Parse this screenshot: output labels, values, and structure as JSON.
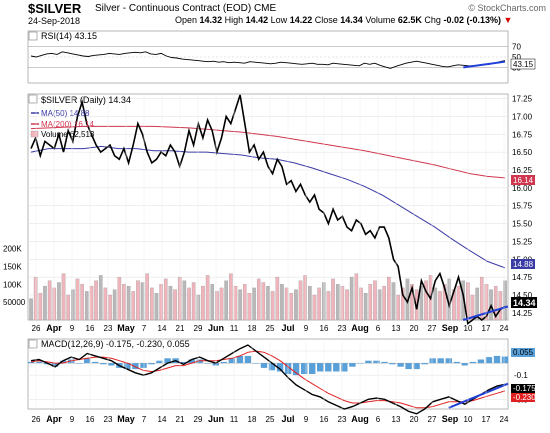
{
  "header": {
    "symbol": "$SILVER",
    "description": "Silver - Continuous Contract (EOD)",
    "exchange": "CME",
    "date": "24-Sep-2018",
    "open_label": "Open",
    "open": "14.32",
    "high_label": "High",
    "high": "14.42",
    "low_label": "Low",
    "low": "14.22",
    "close_label": "Close",
    "close": "14.34",
    "volume_label": "Volume",
    "volume": "62.5K",
    "chg_label": "Chg",
    "chg": "-0.02 (-0.13%)",
    "chg_arrow": "▼",
    "brand": "© StockCharts.com"
  },
  "colors": {
    "price": "#000000",
    "ma50": "#3b3ba6",
    "ma200": "#d0364e",
    "volume_up": "#b8b8b8",
    "volume_down": "#f0b4bc",
    "macd": "#000000",
    "signal": "#e02020",
    "histogram": "#5aa0d8",
    "trendline": "#1f3fd6"
  },
  "chart_data": [
    {
      "type": "line",
      "title": "RSI(14) 43.15",
      "series": [
        {
          "name": "RSI(14)",
          "values": [
            52,
            50,
            53,
            56,
            57,
            55,
            60,
            58,
            56,
            54,
            52,
            51,
            53,
            54,
            55,
            57,
            56,
            55,
            57,
            58,
            59,
            58,
            60,
            56,
            55,
            57,
            52,
            49,
            48,
            46,
            45,
            44,
            43,
            42,
            41,
            42,
            40,
            41,
            39,
            40,
            39,
            38,
            41,
            40,
            39,
            38,
            37,
            38,
            40,
            39,
            38,
            37,
            36,
            37,
            38,
            36,
            36,
            35,
            38,
            37,
            36,
            35,
            34,
            33,
            38,
            36,
            38,
            34,
            31,
            28,
            32,
            35,
            38,
            40,
            42,
            40,
            38,
            36,
            34,
            32,
            31,
            33,
            35,
            34,
            33,
            33,
            34,
            35,
            36,
            38,
            41,
            43
          ]
        }
      ],
      "ylim": [
        0,
        100
      ],
      "yticks": [
        30,
        50,
        70
      ],
      "last_value": "43.15"
    },
    {
      "type": "line",
      "title": "$SILVER (Daily) 14.34",
      "x_labels": [
        "26",
        "Apr",
        "9",
        "16",
        "23",
        "May",
        "7",
        "14",
        "21",
        "29",
        "Jun",
        "11",
        "18",
        "25",
        "Jul",
        "9",
        "16",
        "23",
        "Aug",
        "6",
        "13",
        "20",
        "27",
        "Sep",
        "10",
        "17",
        "24"
      ],
      "series": [
        {
          "name": "$SILVER (Daily) 14.34",
          "values": [
            16.55,
            16.7,
            16.45,
            16.65,
            16.6,
            16.55,
            16.75,
            16.5,
            16.8,
            16.65,
            17.0,
            17.2,
            16.9,
            16.75,
            16.6,
            16.5,
            16.55,
            16.6,
            16.45,
            16.4,
            16.55,
            16.35,
            16.6,
            16.9,
            16.75,
            16.5,
            16.35,
            16.4,
            16.5,
            16.45,
            16.6,
            16.5,
            16.3,
            16.5,
            16.8,
            16.6,
            16.9,
            16.7,
            16.95,
            16.8,
            16.5,
            16.7,
            17.0,
            16.9,
            17.1,
            17.3,
            16.9,
            16.5,
            16.6,
            16.4,
            16.5,
            16.3,
            16.2,
            16.4,
            16.3,
            16.05,
            16.1,
            15.95,
            16.05,
            15.9,
            15.8,
            15.9,
            15.7,
            15.65,
            15.5,
            15.7,
            15.55,
            15.6,
            15.45,
            15.4,
            15.55,
            15.5,
            15.35,
            15.4,
            15.3,
            15.45,
            15.45,
            15.3,
            15.0,
            14.9,
            14.5,
            14.4,
            14.6,
            14.3,
            14.7,
            14.55,
            14.45,
            14.7,
            14.8,
            14.6,
            14.35,
            14.55,
            14.75,
            14.5,
            14.1,
            14.15,
            14.2,
            14.15,
            14.2,
            14.35,
            14.2,
            14.3,
            14.34
          ]
        },
        {
          "name": "MA(50) 14.88",
          "values": [
            16.5,
            16.55,
            16.55,
            16.55,
            16.58,
            16.55,
            16.55,
            16.52,
            16.52,
            16.5,
            16.5,
            16.48,
            16.46,
            16.42,
            16.4,
            16.35,
            16.28,
            16.2,
            16.12,
            16.02,
            15.9,
            15.75,
            15.6,
            15.45,
            15.28,
            15.12,
            14.97,
            14.88
          ]
        },
        {
          "name": "MA(200) 16.14",
          "values": [
            16.83,
            16.84,
            16.85,
            16.86,
            16.86,
            16.86,
            16.86,
            16.86,
            16.85,
            16.84,
            16.82,
            16.8,
            16.78,
            16.75,
            16.72,
            16.68,
            16.64,
            16.6,
            16.56,
            16.52,
            16.47,
            16.42,
            16.37,
            16.32,
            16.26,
            16.2,
            16.16,
            16.14
          ]
        }
      ],
      "last_labels": {
        "price": "14.34",
        "ma50": "14.88",
        "ma200": "16.14"
      },
      "ylim": [
        14.15,
        17.3
      ],
      "yticks": [
        14.25,
        14.5,
        14.75,
        15.0,
        15.25,
        15.5,
        15.75,
        16.0,
        16.25,
        16.5,
        16.75,
        17.0,
        17.25
      ],
      "trendline": {
        "from": 14.15,
        "to": 14.34
      }
    },
    {
      "type": "bar",
      "title": "Volume 62,513",
      "values": [
        60,
        120,
        75,
        95,
        110,
        90,
        105,
        130,
        70,
        85,
        115,
        100,
        80,
        95,
        110,
        125,
        90,
        70,
        85,
        120,
        100,
        95,
        80,
        110,
        105,
        130,
        90,
        75,
        100,
        115,
        95,
        85,
        120,
        110,
        90,
        105,
        70,
        95,
        125,
        100,
        80,
        90,
        110,
        130,
        95,
        85,
        100,
        75,
        90,
        115,
        105,
        95,
        80,
        120,
        100,
        90,
        75,
        85,
        110,
        125,
        95,
        70,
        90,
        105,
        80,
        115,
        100,
        95,
        85,
        120,
        130,
        90,
        75,
        100,
        110,
        85,
        95,
        120,
        105,
        70,
        90,
        115,
        100,
        85,
        95,
        110,
        125,
        90,
        80,
        100,
        115,
        85,
        95,
        110,
        105,
        70,
        90,
        120,
        100,
        85,
        95,
        80,
        110
      ],
      "ylim": [
        0,
        210
      ],
      "yticks_labels": [
        "50000",
        "100K",
        "150K",
        "200K"
      ],
      "yticks": [
        50,
        100,
        150,
        200
      ]
    },
    {
      "type": "line",
      "title": "MACD(12,26,9) -0.175, -0.230, 0.055",
      "series": [
        {
          "name": "MACD(12,26,9)",
          "values": [
            0.02,
            0.03,
            0.0,
            -0.03,
            0.02,
            0.05,
            0.03,
            0.08,
            0.06,
            0.04,
            0.02,
            -0.02,
            -0.05,
            -0.08,
            -0.1,
            -0.08,
            -0.04,
            0.0,
            0.02,
            -0.01,
            0.03,
            0.05,
            0.02,
            0.0,
            0.04,
            0.08,
            0.12,
            0.15,
            0.1,
            0.05,
            0.0,
            -0.05,
            -0.12,
            -0.18,
            -0.22,
            -0.26,
            -0.28,
            -0.32,
            -0.35,
            -0.38,
            -0.36,
            -0.33,
            -0.3,
            -0.29,
            -0.3,
            -0.33,
            -0.36,
            -0.4,
            -0.42,
            -0.38,
            -0.32,
            -0.3,
            -0.28,
            -0.31,
            -0.34,
            -0.3,
            -0.26,
            -0.22,
            -0.19,
            -0.175
          ]
        },
        {
          "name": "signal",
          "values": [
            0.01,
            0.02,
            0.01,
            0.0,
            0.0,
            0.02,
            0.03,
            0.04,
            0.05,
            0.05,
            0.04,
            0.02,
            0.0,
            -0.03,
            -0.06,
            -0.07,
            -0.06,
            -0.04,
            -0.02,
            -0.02,
            0.0,
            0.02,
            0.02,
            0.02,
            0.03,
            0.04,
            0.06,
            0.09,
            0.1,
            0.09,
            0.06,
            0.02,
            -0.03,
            -0.08,
            -0.13,
            -0.17,
            -0.21,
            -0.25,
            -0.28,
            -0.31,
            -0.33,
            -0.33,
            -0.32,
            -0.31,
            -0.31,
            -0.32,
            -0.33,
            -0.35,
            -0.37,
            -0.37,
            -0.36,
            -0.34,
            -0.32,
            -0.32,
            -0.32,
            -0.31,
            -0.29,
            -0.27,
            -0.25,
            -0.23
          ]
        }
      ],
      "histogram": [
        0.01,
        0.01,
        -0.01,
        -0.03,
        0.02,
        0.03,
        0.0,
        0.04,
        0.01,
        -0.01,
        -0.02,
        -0.04,
        -0.05,
        -0.05,
        -0.04,
        -0.01,
        0.02,
        0.04,
        0.04,
        0.01,
        0.03,
        0.03,
        0.0,
        -0.02,
        0.01,
        0.04,
        0.06,
        0.06,
        0.0,
        -0.04,
        -0.06,
        -0.07,
        -0.09,
        -0.1,
        -0.09,
        -0.09,
        -0.07,
        -0.07,
        -0.07,
        -0.07,
        -0.03,
        0.0,
        0.02,
        0.02,
        0.01,
        -0.01,
        -0.03,
        -0.05,
        -0.05,
        -0.01,
        0.04,
        0.04,
        0.04,
        0.01,
        -0.02,
        0.01,
        0.03,
        0.05,
        0.06,
        0.055
      ],
      "last_labels": {
        "macd": "-0.175",
        "signal": "-0.230",
        "histogram": "0.055"
      },
      "ylim": [
        -0.38,
        0.2
      ],
      "yticks": [
        0.1,
        -0.1,
        -0.3
      ],
      "ytick_labels": [
        "0.1",
        "-0.1",
        "-0.3"
      ]
    }
  ]
}
